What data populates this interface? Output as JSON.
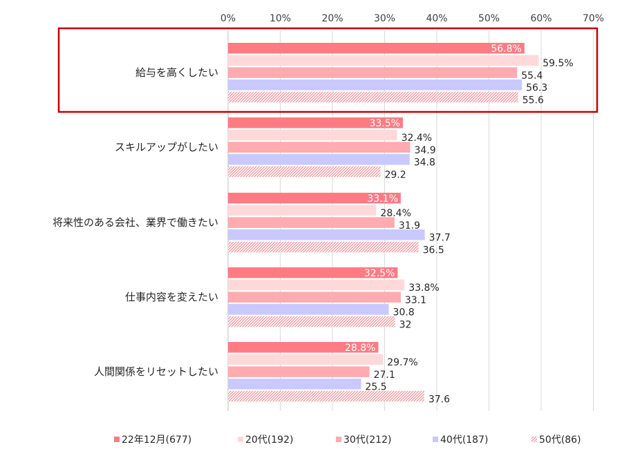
{
  "chart_data": {
    "type": "bar",
    "orientation": "horizontal",
    "x_tick_labels": [
      "0%",
      "10%",
      "20%",
      "30%",
      "40%",
      "50%",
      "60%",
      "70%"
    ],
    "xlim": [
      0,
      70
    ],
    "categories": [
      "給与を高くしたい",
      "スキルアップがしたい",
      "将来性のある会社、業界で働きたい",
      "仕事内容を変えたい",
      "人間関係をリセットしたい"
    ],
    "series": [
      {
        "name": "22年12月(677)",
        "color": "#ff7b83",
        "pattern": "solid",
        "values": [
          56.8,
          33.5,
          33.1,
          32.5,
          28.8
        ],
        "labels": [
          "56.8%",
          "33.5%",
          "33.1%",
          "32.5%",
          "28.8%"
        ]
      },
      {
        "name": "20代(192)",
        "color": "#ffd9da",
        "pattern": "solid",
        "values": [
          59.5,
          32.4,
          28.4,
          33.8,
          29.7
        ],
        "labels": [
          "59.5%",
          "32.4%",
          "28.4%",
          "33.8%",
          "29.7%"
        ]
      },
      {
        "name": "30代(212)",
        "color": "#ffabaf",
        "pattern": "solid",
        "values": [
          55.4,
          34.9,
          31.9,
          33.1,
          27.1
        ],
        "labels": [
          "55.4",
          "34.9",
          "31.9",
          "33.1",
          "27.1"
        ]
      },
      {
        "name": "40代(187)",
        "color": "#c9c9ff",
        "pattern": "solid",
        "values": [
          56.3,
          34.8,
          37.7,
          30.8,
          25.5
        ],
        "labels": [
          "56.3",
          "34.8",
          "37.7",
          "30.8",
          "25.5"
        ]
      },
      {
        "name": "50代(86)",
        "color": "#f28f96",
        "pattern": "hatch",
        "values": [
          55.6,
          29.2,
          36.5,
          32,
          37.6
        ],
        "labels": [
          "55.6",
          "29.2",
          "36.5",
          "32",
          "37.6"
        ]
      }
    ],
    "highlight_category": "給与を高くしたい",
    "highlight_color": "#c00000",
    "legend_position": "bottom"
  }
}
